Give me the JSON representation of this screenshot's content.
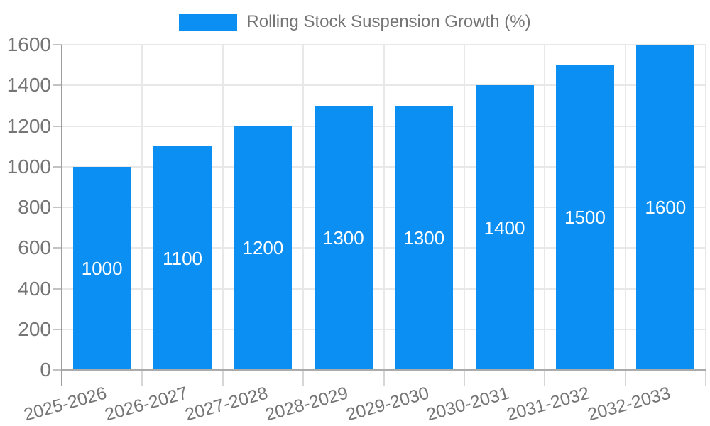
{
  "legend": {
    "label": "Rolling Stock Suspension Growth (%)"
  },
  "chart_data": {
    "type": "bar",
    "title": "Rolling Stock Suspension Growth (%)",
    "categories": [
      "2025-2026",
      "2026-2027",
      "2027-2028",
      "2028-2029",
      "2029-2030",
      "2030-2031",
      "2031-2032",
      "2032-2033"
    ],
    "values": [
      1000,
      1100,
      1200,
      1300,
      1300,
      1400,
      1500,
      1600
    ],
    "value_labels": [
      "1000",
      "1100",
      "1200",
      "1300",
      "1300",
      "1400",
      "1500",
      "1600"
    ],
    "xlabel": "",
    "ylabel": "",
    "ylim": [
      0,
      1600
    ],
    "yticks": [
      0,
      200,
      400,
      600,
      800,
      1000,
      1200,
      1400,
      1600
    ],
    "grid": true,
    "legend_position": "top",
    "colors": {
      "bar": "#0b8ff2",
      "value_label": "#ffffff",
      "axis_text": "#757575",
      "grid": "#e8e8e8",
      "axis_line": "#9e9e9e",
      "baseline": "#ababab"
    }
  }
}
